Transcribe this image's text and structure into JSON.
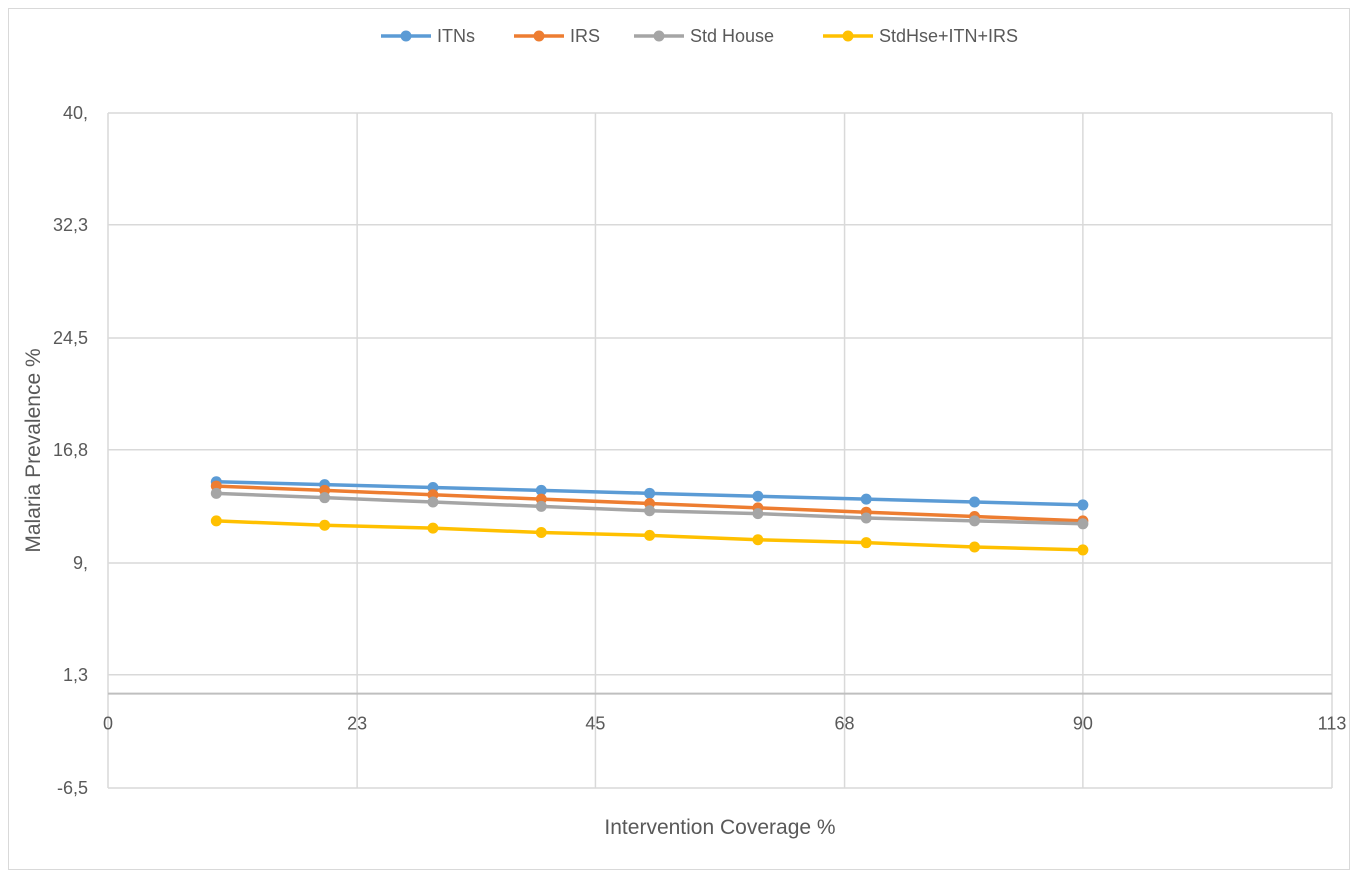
{
  "chart_data": {
    "type": "line",
    "xlabel": "Intervention Coverage %",
    "ylabel": "Malaria Prevalence %",
    "xlim": [
      0,
      113
    ],
    "ylim": [
      -6.5,
      40
    ],
    "x_ticks": [
      0,
      23,
      45,
      68,
      90,
      113
    ],
    "x_tick_labels": [
      "0",
      "23",
      "45",
      "68",
      "90",
      "113"
    ],
    "y_ticks": [
      40,
      32.3,
      24.5,
      16.8,
      9,
      1.3,
      -6.5
    ],
    "y_tick_labels": [
      "40,",
      "32,3",
      "24,5",
      "16,8",
      "9,",
      "1,3",
      "-6,5"
    ],
    "grid": true,
    "legend_position": "top",
    "x": [
      10,
      20,
      30,
      40,
      50,
      60,
      70,
      80,
      90
    ],
    "series": [
      {
        "name": "ITNs",
        "color": "#5b9bd5",
        "values": [
          14.6,
          14.4,
          14.2,
          14.0,
          13.8,
          13.6,
          13.4,
          13.2,
          13.0
        ]
      },
      {
        "name": "IRS",
        "color": "#ed7d31",
        "values": [
          14.3,
          14.0,
          13.7,
          13.4,
          13.1,
          12.8,
          12.5,
          12.2,
          11.9
        ]
      },
      {
        "name": "Std House",
        "color": "#a5a5a5",
        "values": [
          13.8,
          13.5,
          13.2,
          12.9,
          12.6,
          12.4,
          12.1,
          11.9,
          11.7
        ]
      },
      {
        "name": "StdHse+ITN+IRS",
        "color": "#ffc000",
        "values": [
          11.9,
          11.6,
          11.4,
          11.1,
          10.9,
          10.6,
          10.4,
          10.1,
          9.9
        ]
      }
    ]
  }
}
